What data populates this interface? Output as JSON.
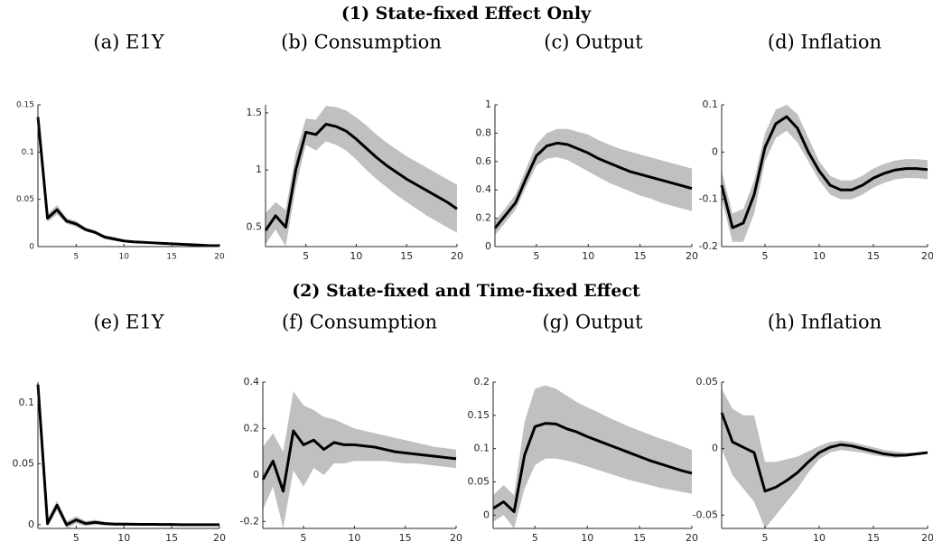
{
  "headings": [
    "(1) State-fixed Effect Only",
    "(2) State-fixed and Time-fixed Effect"
  ],
  "chart_data": [
    {
      "type": "line",
      "title": "(a) E1Y",
      "x": [
        1,
        2,
        3,
        4,
        5,
        6,
        7,
        8,
        9,
        10,
        11,
        12,
        13,
        14,
        15,
        16,
        17,
        18,
        19,
        20
      ],
      "xlim": [
        1,
        20
      ],
      "xticks": [
        5,
        10,
        15,
        20
      ],
      "ylim": [
        0,
        0.15
      ],
      "yticks": [
        0,
        0.05,
        0.1,
        0.15
      ],
      "color": "#000000",
      "band_color": "#c0c0c0",
      "values": [
        0.137,
        0.03,
        0.039,
        0.027,
        0.024,
        0.018,
        0.015,
        0.01,
        0.008,
        0.006,
        0.005,
        0.0045,
        0.004,
        0.0035,
        0.003,
        0.0025,
        0.002,
        0.0015,
        0.001,
        0.001
      ],
      "lower": [
        0.134,
        0.026,
        0.034,
        0.024,
        0.021,
        0.016,
        0.013,
        0.008,
        0.006,
        0.0045,
        0.0037,
        0.0033,
        0.0029,
        0.0025,
        0.002,
        0.0016,
        0.0012,
        0.0008,
        0.0004,
        0.0004
      ],
      "upper": [
        0.14,
        0.034,
        0.044,
        0.03,
        0.027,
        0.02,
        0.017,
        0.012,
        0.01,
        0.0075,
        0.0063,
        0.0057,
        0.0051,
        0.0045,
        0.004,
        0.0034,
        0.0028,
        0.0022,
        0.0016,
        0.0016
      ]
    },
    {
      "type": "line",
      "title": "(b) Consumption",
      "x": [
        1,
        2,
        3,
        4,
        5,
        6,
        7,
        8,
        9,
        10,
        11,
        12,
        13,
        14,
        15,
        16,
        17,
        18,
        19,
        20
      ],
      "xlim": [
        1,
        20
      ],
      "xticks": [
        5,
        10,
        15,
        20
      ],
      "ylim": [
        0.33,
        1.57
      ],
      "yticks": [
        0.5,
        1,
        1.5
      ],
      "color": "#000000",
      "band_color": "#c0c0c0",
      "values": [
        0.47,
        0.6,
        0.5,
        1.0,
        1.33,
        1.31,
        1.4,
        1.38,
        1.34,
        1.27,
        1.19,
        1.11,
        1.04,
        0.98,
        0.92,
        0.87,
        0.82,
        0.77,
        0.72,
        0.66
      ],
      "lower": [
        0.35,
        0.48,
        0.33,
        0.85,
        1.22,
        1.17,
        1.25,
        1.22,
        1.17,
        1.09,
        1.0,
        0.92,
        0.85,
        0.78,
        0.72,
        0.66,
        0.6,
        0.55,
        0.5,
        0.45
      ],
      "upper": [
        0.62,
        0.72,
        0.65,
        1.15,
        1.45,
        1.44,
        1.56,
        1.55,
        1.52,
        1.46,
        1.39,
        1.31,
        1.24,
        1.18,
        1.12,
        1.07,
        1.02,
        0.97,
        0.92,
        0.87
      ]
    },
    {
      "type": "line",
      "title": "(c) Output",
      "x": [
        1,
        2,
        3,
        4,
        5,
        6,
        7,
        8,
        9,
        10,
        11,
        12,
        13,
        14,
        15,
        16,
        17,
        18,
        19,
        20
      ],
      "xlim": [
        1,
        20
      ],
      "xticks": [
        5,
        10,
        15,
        20
      ],
      "ylim": [
        0,
        1
      ],
      "yticks": [
        0,
        0.2,
        0.4,
        0.6,
        0.8,
        1
      ],
      "color": "#000000",
      "band_color": "#c0c0c0",
      "values": [
        0.13,
        0.22,
        0.31,
        0.48,
        0.64,
        0.71,
        0.73,
        0.72,
        0.69,
        0.66,
        0.62,
        0.59,
        0.56,
        0.53,
        0.51,
        0.49,
        0.47,
        0.45,
        0.43,
        0.41
      ],
      "lower": [
        0.08,
        0.17,
        0.26,
        0.42,
        0.57,
        0.62,
        0.63,
        0.61,
        0.57,
        0.53,
        0.49,
        0.45,
        0.42,
        0.39,
        0.36,
        0.34,
        0.31,
        0.29,
        0.27,
        0.25
      ],
      "upper": [
        0.18,
        0.27,
        0.37,
        0.55,
        0.72,
        0.8,
        0.83,
        0.83,
        0.81,
        0.79,
        0.75,
        0.72,
        0.69,
        0.67,
        0.65,
        0.63,
        0.61,
        0.59,
        0.57,
        0.55
      ]
    },
    {
      "type": "line",
      "title": "(d) Inflation",
      "x": [
        1,
        2,
        3,
        4,
        5,
        6,
        7,
        8,
        9,
        10,
        11,
        12,
        13,
        14,
        15,
        16,
        17,
        18,
        19,
        20
      ],
      "xlim": [
        1,
        20
      ],
      "xticks": [
        5,
        10,
        15,
        20
      ],
      "ylim": [
        -0.2,
        0.1
      ],
      "yticks": [
        -0.2,
        -0.1,
        0,
        0.1
      ],
      "color": "#000000",
      "band_color": "#c0c0c0",
      "values": [
        -0.07,
        -0.16,
        -0.15,
        -0.09,
        0.01,
        0.06,
        0.075,
        0.05,
        0.0,
        -0.04,
        -0.07,
        -0.08,
        -0.08,
        -0.07,
        -0.055,
        -0.045,
        -0.038,
        -0.035,
        -0.035,
        -0.037
      ],
      "lower": [
        -0.1,
        -0.19,
        -0.19,
        -0.13,
        -0.02,
        0.03,
        0.045,
        0.02,
        -0.02,
        -0.06,
        -0.09,
        -0.1,
        -0.1,
        -0.09,
        -0.075,
        -0.065,
        -0.058,
        -0.055,
        -0.055,
        -0.058
      ],
      "upper": [
        -0.04,
        -0.13,
        -0.12,
        -0.06,
        0.04,
        0.09,
        0.1,
        0.08,
        0.03,
        -0.02,
        -0.05,
        -0.06,
        -0.06,
        -0.05,
        -0.035,
        -0.025,
        -0.018,
        -0.015,
        -0.015,
        -0.017
      ]
    },
    {
      "type": "line",
      "title": "(e) E1Y",
      "x": [
        1,
        2,
        3,
        4,
        5,
        6,
        7,
        8,
        9,
        10,
        11,
        12,
        13,
        14,
        15,
        16,
        17,
        18,
        19,
        20
      ],
      "xlim": [
        1,
        20
      ],
      "xticks": [
        5,
        10,
        15,
        20
      ],
      "ylim": [
        -0.003,
        0.117
      ],
      "yticks": [
        0,
        0.05,
        0.1
      ],
      "color": "#000000",
      "band_color": "#c0c0c0",
      "values": [
        0.115,
        0.001,
        0.016,
        0.0,
        0.004,
        0.001,
        0.002,
        0.001,
        0.0005,
        0.0005,
        0.0004,
        0.0003,
        0.0003,
        0.0002,
        0.0002,
        0.0001,
        0.0001,
        0.0001,
        0.0001,
        0.0001
      ],
      "lower": [
        0.112,
        -0.002,
        0.012,
        -0.003,
        0.001,
        -0.001,
        0.0,
        -0.0005,
        -0.0008,
        -0.0007,
        -0.0007,
        -0.0007,
        -0.0006,
        -0.0006,
        -0.0006,
        -0.0006,
        -0.0006,
        -0.0006,
        -0.0006,
        -0.0006
      ],
      "upper": [
        0.118,
        0.004,
        0.02,
        0.003,
        0.007,
        0.003,
        0.004,
        0.0025,
        0.0018,
        0.0017,
        0.0015,
        0.0013,
        0.0012,
        0.001,
        0.001,
        0.0008,
        0.0008,
        0.0008,
        0.0008,
        0.0008
      ]
    },
    {
      "type": "line",
      "title": "(f) Consumption",
      "x": [
        1,
        2,
        3,
        4,
        5,
        6,
        7,
        8,
        9,
        10,
        11,
        12,
        13,
        14,
        15,
        16,
        17,
        18,
        19,
        20
      ],
      "xlim": [
        1,
        20
      ],
      "xticks": [
        5,
        10,
        15,
        20
      ],
      "ylim": [
        -0.23,
        0.4
      ],
      "yticks": [
        -0.2,
        0,
        0.2,
        0.4
      ],
      "color": "#000000",
      "band_color": "#c0c0c0",
      "values": [
        -0.02,
        0.06,
        -0.07,
        0.19,
        0.13,
        0.15,
        0.11,
        0.14,
        0.13,
        0.13,
        0.125,
        0.12,
        0.11,
        0.1,
        0.095,
        0.09,
        0.085,
        0.08,
        0.075,
        0.07
      ],
      "lower": [
        -0.15,
        -0.05,
        -0.23,
        0.02,
        -0.05,
        0.03,
        0.0,
        0.05,
        0.05,
        0.06,
        0.06,
        0.06,
        0.06,
        0.055,
        0.05,
        0.05,
        0.045,
        0.04,
        0.035,
        0.03
      ],
      "upper": [
        0.12,
        0.18,
        0.1,
        0.36,
        0.3,
        0.28,
        0.25,
        0.24,
        0.22,
        0.2,
        0.19,
        0.18,
        0.17,
        0.16,
        0.15,
        0.14,
        0.13,
        0.12,
        0.115,
        0.11
      ]
    },
    {
      "type": "line",
      "title": "(g) Output",
      "x": [
        1,
        2,
        3,
        4,
        5,
        6,
        7,
        8,
        9,
        10,
        11,
        12,
        13,
        14,
        15,
        16,
        17,
        18,
        19,
        20
      ],
      "xlim": [
        1,
        20
      ],
      "xticks": [
        5,
        10,
        15,
        20
      ],
      "ylim": [
        -0.02,
        0.2
      ],
      "yticks": [
        0,
        0.05,
        0.1,
        0.15,
        0.2
      ],
      "color": "#000000",
      "band_color": "#c0c0c0",
      "values": [
        0.01,
        0.02,
        0.005,
        0.09,
        0.133,
        0.138,
        0.137,
        0.13,
        0.125,
        0.118,
        0.112,
        0.106,
        0.1,
        0.094,
        0.088,
        0.082,
        0.077,
        0.072,
        0.067,
        0.063
      ],
      "lower": [
        -0.01,
        0.0,
        -0.02,
        0.04,
        0.075,
        0.085,
        0.085,
        0.082,
        0.078,
        0.073,
        0.068,
        0.063,
        0.058,
        0.053,
        0.049,
        0.045,
        0.041,
        0.038,
        0.035,
        0.032
      ],
      "upper": [
        0.03,
        0.045,
        0.03,
        0.14,
        0.19,
        0.195,
        0.19,
        0.18,
        0.17,
        0.162,
        0.155,
        0.147,
        0.14,
        0.133,
        0.127,
        0.121,
        0.115,
        0.11,
        0.104,
        0.098
      ]
    },
    {
      "type": "line",
      "title": "(h) Inflation",
      "x": [
        1,
        2,
        3,
        4,
        5,
        6,
        7,
        8,
        9,
        10,
        11,
        12,
        13,
        14,
        15,
        16,
        17,
        18,
        19,
        20
      ],
      "xlim": [
        1,
        20
      ],
      "xticks": [
        5,
        10,
        15,
        20
      ],
      "ylim": [
        -0.06,
        0.05
      ],
      "yticks": [
        -0.05,
        0,
        0.05
      ],
      "color": "#000000",
      "band_color": "#c0c0c0",
      "values": [
        0.027,
        0.005,
        0.001,
        -0.003,
        -0.032,
        -0.029,
        -0.024,
        -0.018,
        -0.01,
        -0.003,
        0.001,
        0.003,
        0.002,
        0.0,
        -0.002,
        -0.004,
        -0.005,
        -0.005,
        -0.004,
        -0.003
      ],
      "lower": [
        0.0,
        -0.02,
        -0.03,
        -0.04,
        -0.06,
        -0.05,
        -0.04,
        -0.03,
        -0.018,
        -0.008,
        -0.003,
        -0.001,
        -0.002,
        -0.003,
        -0.005,
        -0.006,
        -0.007,
        -0.006,
        -0.005,
        -0.004
      ],
      "upper": [
        0.045,
        0.03,
        0.025,
        0.025,
        -0.01,
        -0.01,
        -0.008,
        -0.006,
        -0.002,
        0.002,
        0.005,
        0.006,
        0.005,
        0.003,
        0.001,
        -0.001,
        -0.002,
        -0.003,
        -0.003,
        -0.002
      ]
    }
  ]
}
